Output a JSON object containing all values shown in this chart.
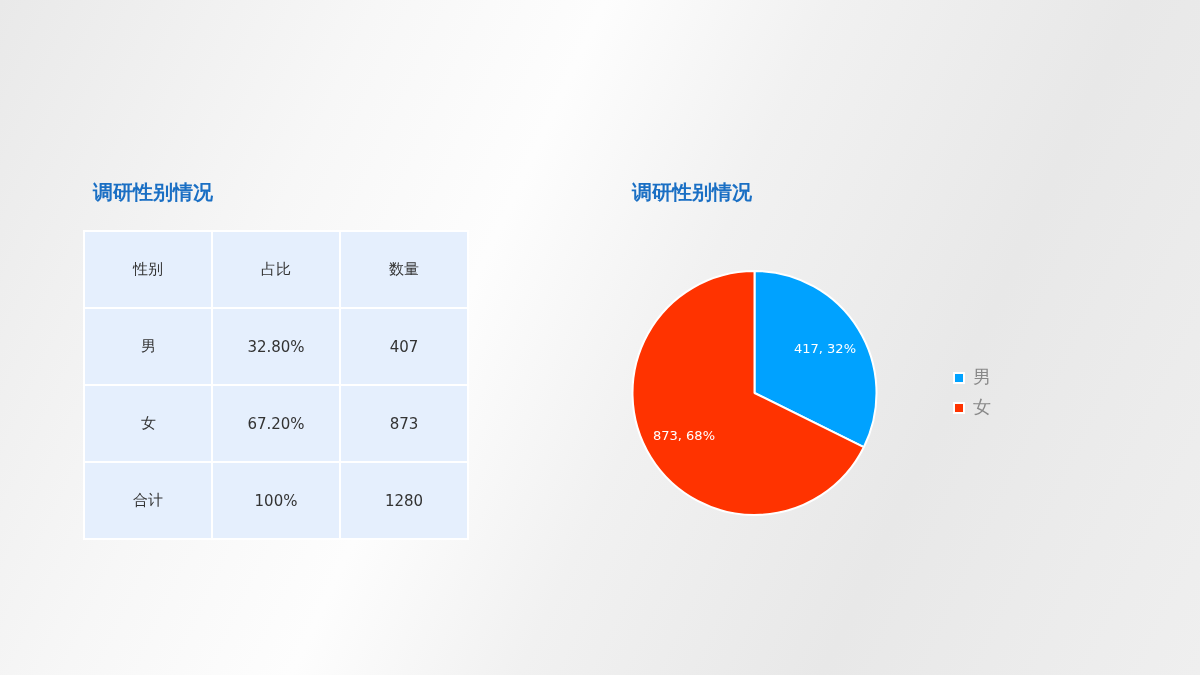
{
  "chart_data": [
    {
      "type": "other",
      "title": "调研性别情况",
      "ylabel": "性别",
      "categories": [
        "男",
        "女",
        "合计"
      ],
      "series": [
        {
          "name": "占比",
          "values": [
            32.8,
            67.2,
            100
          ],
          "value_labels": [
            "32.80%",
            "67.20%",
            "100%"
          ]
        },
        {
          "name": "数量",
          "values": [
            407,
            873,
            1280
          ]
        }
      ],
      "data_labels": true
    },
    {
      "type": "pie",
      "title": "调研性别情况",
      "categories": [
        "男",
        "女"
      ],
      "values": [
        417,
        873
      ],
      "colors": [
        "#00a2ff",
        "#ff3300"
      ],
      "value_labels": [
        "417, 32%",
        "873, 68%"
      ],
      "legend": "right"
    }
  ]
}
